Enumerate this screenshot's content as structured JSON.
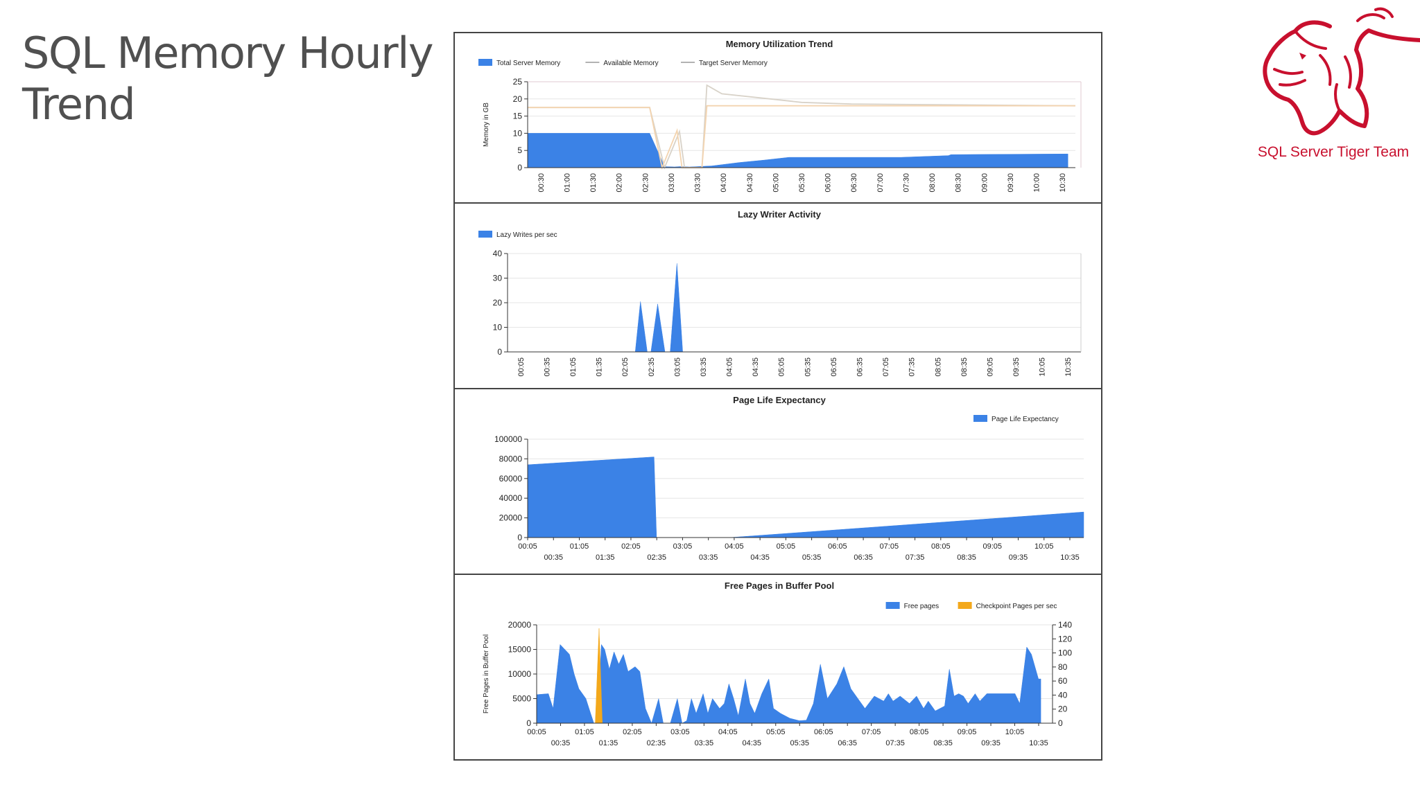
{
  "slide": {
    "title": "SQL Memory Hourly Trend",
    "logo_text": "SQL Server Tiger Team",
    "logo_icon": "tiger-head-icon"
  },
  "colors": {
    "blue": "#3b82e6",
    "orange": "#f3a81b",
    "line_gray": "#d8d2c8",
    "line_peach": "#f3d4b0",
    "grid": "#e6e6e6"
  },
  "chart_data": [
    {
      "type": "area",
      "title": "Memory Utilization Trend",
      "ylabel": "Memory in GB",
      "ylim": [
        0,
        25
      ],
      "yticks": [
        0,
        5,
        10,
        15,
        20,
        25
      ],
      "legend_position": "top-left",
      "x_ticks": [
        "00:30",
        "01:00",
        "01:30",
        "02:00",
        "02:30",
        "03:00",
        "03:30",
        "04:00",
        "04:30",
        "05:00",
        "05:30",
        "06:00",
        "06:30",
        "07:00",
        "07:30",
        "08:00",
        "08:30",
        "09:00",
        "09:30",
        "10:00",
        "10:30"
      ],
      "xlim": [
        0,
        11
      ],
      "series": [
        {
          "name": "Total Server Memory",
          "kind": "area",
          "color": "#3b82e6",
          "points": [
            [
              0,
              10
            ],
            [
              2.45,
              10
            ],
            [
              2.75,
              0.3
            ],
            [
              2.95,
              0.2
            ],
            [
              3.05,
              0.3
            ],
            [
              3.25,
              0.2
            ],
            [
              3.7,
              0.5
            ],
            [
              4.25,
              1.5
            ],
            [
              4.75,
              2.2
            ],
            [
              5.25,
              3
            ],
            [
              7.5,
              3
            ],
            [
              8.45,
              3.5
            ],
            [
              8.5,
              3.8
            ],
            [
              10.85,
              4
            ],
            [
              10.85,
              0
            ]
          ]
        },
        {
          "name": "Available Memory",
          "kind": "line",
          "color": "#d8d2c8",
          "points": [
            [
              0,
              17.5
            ],
            [
              2.45,
              17.5
            ],
            [
              2.75,
              0
            ],
            [
              3.05,
              10.5
            ],
            [
              3.15,
              0
            ],
            [
              3.5,
              0
            ],
            [
              3.6,
              24
            ],
            [
              3.9,
              21.5
            ],
            [
              5,
              19.8
            ],
            [
              5.5,
              19
            ],
            [
              6.5,
              18.5
            ],
            [
              11,
              18
            ]
          ]
        },
        {
          "name": "Target Server Memory",
          "kind": "line",
          "color": "#f3d4b0",
          "points": [
            [
              0,
              17.5
            ],
            [
              2.45,
              17.5
            ],
            [
              2.7,
              0
            ],
            [
              3.0,
              10.8
            ],
            [
              3.1,
              0
            ],
            [
              3.5,
              0
            ],
            [
              3.6,
              18
            ],
            [
              11,
              18
            ]
          ]
        }
      ]
    },
    {
      "type": "area",
      "title": "Lazy Writer Activity",
      "ylabel": "",
      "ylim": [
        0,
        40
      ],
      "yticks": [
        0,
        10,
        20,
        30,
        40
      ],
      "legend_position": "top-left",
      "x_ticks": [
        "00:05",
        "00:35",
        "01:05",
        "01:35",
        "02:05",
        "02:35",
        "03:05",
        "03:35",
        "04:05",
        "04:35",
        "05:05",
        "05:35",
        "06:05",
        "06:35",
        "07:05",
        "07:35",
        "08:05",
        "08:35",
        "09:05",
        "09:35",
        "10:05",
        "10:35"
      ],
      "xlim": [
        0,
        11
      ],
      "series": [
        {
          "name": "Lazy Writes per sec",
          "kind": "area",
          "color": "#3b82e6",
          "points": [
            [
              2.45,
              0
            ],
            [
              2.55,
              20.5
            ],
            [
              2.68,
              0
            ],
            [
              2.75,
              0
            ],
            [
              2.88,
              19.5
            ],
            [
              3.02,
              0
            ],
            [
              3.12,
              0
            ],
            [
              3.25,
              36
            ],
            [
              3.36,
              0
            ]
          ]
        }
      ]
    },
    {
      "type": "area",
      "title": "Page Life Expectancy",
      "ylabel": "",
      "ylim": [
        0,
        100000
      ],
      "yticks": [
        0,
        20000,
        40000,
        60000,
        80000,
        100000
      ],
      "legend_position": "top-right",
      "x_ticks": [
        "00:05",
        "00:35",
        "01:05",
        "01:35",
        "02:05",
        "02:35",
        "03:05",
        "03:35",
        "04:05",
        "04:35",
        "05:05",
        "05:35",
        "06:05",
        "06:35",
        "07:05",
        "07:35",
        "08:05",
        "08:35",
        "09:05",
        "09:35",
        "10:05",
        "10:35"
      ],
      "xlim": [
        0,
        11
      ],
      "series": [
        {
          "name": "Page Life Expectancy",
          "kind": "area",
          "color": "#3b82e6",
          "points": [
            [
              0,
              0
            ],
            [
              0,
              74000
            ],
            [
              2.5,
              82000
            ],
            [
              2.55,
              0
            ],
            [
              4,
              0
            ],
            [
              11,
              26000
            ],
            [
              11,
              0
            ]
          ]
        }
      ]
    },
    {
      "type": "area",
      "title": "Free Pages in Buffer Pool",
      "ylabel": "Free Pages in Buffer Pool",
      "ylim": [
        0,
        20000
      ],
      "yticks": [
        0,
        5000,
        10000,
        15000,
        20000
      ],
      "y2lim": [
        0,
        140
      ],
      "y2ticks": [
        0,
        20,
        40,
        60,
        80,
        100,
        120,
        140
      ],
      "legend_position": "top-right",
      "x_ticks": [
        "00:05",
        "00:35",
        "01:05",
        "01:35",
        "02:05",
        "02:35",
        "03:05",
        "03:35",
        "04:05",
        "04:35",
        "05:05",
        "05:35",
        "06:05",
        "06:35",
        "07:05",
        "07:35",
        "08:05",
        "08:35",
        "09:05",
        "09:35",
        "10:05",
        "10:35"
      ],
      "xlim": [
        0,
        11
      ],
      "series": [
        {
          "name": "Free pages",
          "kind": "area",
          "axis": "y",
          "color": "#3b82e6",
          "points": [
            [
              0,
              0
            ],
            [
              0,
              5800
            ],
            [
              0.25,
              6000
            ],
            [
              0.35,
              3000
            ],
            [
              0.5,
              16000
            ],
            [
              0.7,
              14000
            ],
            [
              0.8,
              10000
            ],
            [
              0.9,
              7000
            ],
            [
              1.05,
              5000
            ],
            [
              1.15,
              2000
            ],
            [
              1.22,
              0
            ],
            [
              1.3,
              0
            ],
            [
              1.38,
              16000
            ],
            [
              1.45,
              15000
            ],
            [
              1.55,
              11000
            ],
            [
              1.65,
              14500
            ],
            [
              1.75,
              12000
            ],
            [
              1.85,
              14000
            ],
            [
              1.95,
              10500
            ],
            [
              2.1,
              11500
            ],
            [
              2.2,
              10500
            ],
            [
              2.32,
              3000
            ],
            [
              2.45,
              0
            ],
            [
              2.6,
              5000
            ],
            [
              2.7,
              0
            ],
            [
              2.85,
              0
            ],
            [
              3.0,
              5000
            ],
            [
              3.1,
              0
            ],
            [
              3.2,
              500
            ],
            [
              3.3,
              5000
            ],
            [
              3.4,
              2000
            ],
            [
              3.55,
              6000
            ],
            [
              3.65,
              2000
            ],
            [
              3.75,
              5000
            ],
            [
              3.9,
              3000
            ],
            [
              4.0,
              4000
            ],
            [
              4.1,
              8000
            ],
            [
              4.2,
              5000
            ],
            [
              4.3,
              1500
            ],
            [
              4.45,
              9000
            ],
            [
              4.55,
              4000
            ],
            [
              4.65,
              2000
            ],
            [
              4.8,
              6000
            ],
            [
              4.95,
              9000
            ],
            [
              5.05,
              3000
            ],
            [
              5.2,
              2000
            ],
            [
              5.4,
              1000
            ],
            [
              5.6,
              500
            ],
            [
              5.75,
              600
            ],
            [
              5.9,
              4000
            ],
            [
              6.05,
              12000
            ],
            [
              6.2,
              5000
            ],
            [
              6.4,
              8000
            ],
            [
              6.55,
              11500
            ],
            [
              6.7,
              7000
            ],
            [
              6.85,
              5000
            ],
            [
              7.0,
              3000
            ],
            [
              7.2,
              5500
            ],
            [
              7.4,
              4500
            ],
            [
              7.5,
              6000
            ],
            [
              7.6,
              4500
            ],
            [
              7.75,
              5500
            ],
            [
              7.95,
              4000
            ],
            [
              8.1,
              5500
            ],
            [
              8.25,
              3000
            ],
            [
              8.35,
              4500
            ],
            [
              8.5,
              2500
            ],
            [
              8.7,
              3500
            ],
            [
              8.8,
              11000
            ],
            [
              8.9,
              5500
            ],
            [
              9.0,
              6000
            ],
            [
              9.1,
              5500
            ],
            [
              9.2,
              4000
            ],
            [
              9.35,
              6000
            ],
            [
              9.45,
              4500
            ],
            [
              9.6,
              6000
            ],
            [
              10.2,
              6000
            ],
            [
              10.3,
              4000
            ],
            [
              10.45,
              15500
            ],
            [
              10.55,
              14000
            ],
            [
              10.7,
              9000
            ],
            [
              10.75,
              9000
            ],
            [
              10.75,
              0
            ]
          ]
        },
        {
          "name": "Checkpoint Pages per sec",
          "kind": "area",
          "axis": "y2",
          "color": "#f3a81b",
          "points": [
            [
              1.25,
              0
            ],
            [
              1.33,
              135
            ],
            [
              1.4,
              0
            ]
          ]
        }
      ]
    }
  ]
}
